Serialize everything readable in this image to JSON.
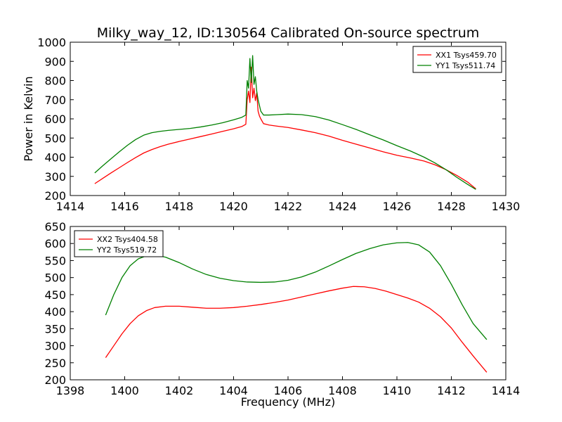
{
  "title": "Milky_way_12, ID:130564 Calibrated On-source spectrum",
  "chart_data": [
    {
      "type": "line",
      "xlabel": "",
      "ylabel": "Power in Kelvin",
      "xlim": [
        1414,
        1430
      ],
      "ylim": [
        200,
        1000
      ],
      "xticks": [
        1414,
        1416,
        1418,
        1420,
        1422,
        1424,
        1426,
        1428,
        1430
      ],
      "yticks": [
        200,
        300,
        400,
        500,
        600,
        700,
        800,
        900,
        1000
      ],
      "legend_position": "top-right",
      "grid": false,
      "series": [
        {
          "name": "XX1 Tsys459.70",
          "color": "#ff0000",
          "x": [
            1414.9,
            1415.2,
            1415.5,
            1415.8,
            1416.1,
            1416.4,
            1416.7,
            1417.0,
            1417.3,
            1417.6,
            1418.0,
            1418.4,
            1418.8,
            1419.2,
            1419.6,
            1420.0,
            1420.3,
            1420.45,
            1420.5,
            1420.55,
            1420.6,
            1420.65,
            1420.7,
            1420.75,
            1420.8,
            1420.85,
            1420.9,
            1420.95,
            1421.0,
            1421.1,
            1421.3,
            1421.6,
            1422.0,
            1422.5,
            1423.0,
            1423.5,
            1424.0,
            1424.5,
            1425.0,
            1425.5,
            1426.0,
            1426.5,
            1427.0,
            1427.4,
            1427.8,
            1428.2,
            1428.6,
            1428.9
          ],
          "y": [
            262,
            290,
            318,
            345,
            372,
            398,
            422,
            440,
            455,
            468,
            482,
            495,
            508,
            521,
            535,
            548,
            560,
            572,
            700,
            745,
            685,
            870,
            710,
            760,
            695,
            735,
            640,
            615,
            600,
            575,
            568,
            562,
            555,
            542,
            528,
            510,
            488,
            468,
            448,
            428,
            410,
            396,
            380,
            360,
            335,
            305,
            270,
            235
          ]
        },
        {
          "name": "YY1 Tsys511.74",
          "color": "#008000",
          "x": [
            1414.9,
            1415.2,
            1415.5,
            1415.8,
            1416.1,
            1416.4,
            1416.7,
            1417.0,
            1417.3,
            1417.6,
            1418.0,
            1418.4,
            1418.8,
            1419.2,
            1419.6,
            1420.0,
            1420.3,
            1420.45,
            1420.5,
            1420.55,
            1420.6,
            1420.65,
            1420.7,
            1420.75,
            1420.8,
            1420.85,
            1420.9,
            1420.95,
            1421.0,
            1421.1,
            1421.3,
            1421.6,
            1422.0,
            1422.5,
            1423.0,
            1423.5,
            1424.0,
            1424.5,
            1425.0,
            1425.5,
            1426.0,
            1426.5,
            1427.0,
            1427.4,
            1427.8,
            1428.2,
            1428.6,
            1428.9
          ],
          "y": [
            318,
            356,
            392,
            428,
            462,
            492,
            515,
            528,
            535,
            540,
            545,
            550,
            558,
            568,
            580,
            595,
            608,
            620,
            800,
            760,
            915,
            790,
            930,
            780,
            820,
            745,
            700,
            670,
            640,
            620,
            620,
            622,
            625,
            622,
            612,
            594,
            570,
            545,
            517,
            490,
            460,
            432,
            400,
            370,
            335,
            295,
            258,
            232
          ]
        }
      ]
    },
    {
      "type": "line",
      "xlabel": "Frequency (MHz)",
      "ylabel": "",
      "xlim": [
        1398,
        1414
      ],
      "ylim": [
        200,
        650
      ],
      "xticks": [
        1398,
        1400,
        1402,
        1404,
        1406,
        1408,
        1410,
        1412,
        1414
      ],
      "yticks": [
        200,
        250,
        300,
        350,
        400,
        450,
        500,
        550,
        600,
        650
      ],
      "legend_position": "top-left",
      "grid": false,
      "series": [
        {
          "name": "XX2 Tsys404.58",
          "color": "#ff0000",
          "x": [
            1399.3,
            1399.6,
            1399.9,
            1400.2,
            1400.5,
            1400.8,
            1401.1,
            1401.5,
            1402.0,
            1402.5,
            1403.0,
            1403.5,
            1404.0,
            1404.5,
            1405.0,
            1405.5,
            1406.0,
            1406.5,
            1407.0,
            1407.5,
            1408.0,
            1408.4,
            1408.8,
            1409.2,
            1409.6,
            1410.0,
            1410.4,
            1410.8,
            1411.2,
            1411.6,
            1412.0,
            1412.4,
            1412.8,
            1413.3
          ],
          "y": [
            265,
            300,
            335,
            365,
            388,
            403,
            412,
            416,
            416,
            413,
            410,
            410,
            412,
            416,
            421,
            427,
            434,
            443,
            452,
            461,
            469,
            474,
            473,
            468,
            460,
            450,
            440,
            428,
            410,
            385,
            352,
            310,
            270,
            222
          ]
        },
        {
          "name": "YY2 Tsys519.72",
          "color": "#008000",
          "x": [
            1399.3,
            1399.6,
            1399.9,
            1400.2,
            1400.5,
            1400.8,
            1401.1,
            1401.5,
            1402.0,
            1402.5,
            1403.0,
            1403.5,
            1404.0,
            1404.5,
            1405.0,
            1405.5,
            1406.0,
            1406.5,
            1407.0,
            1407.5,
            1408.0,
            1408.5,
            1409.0,
            1409.5,
            1410.0,
            1410.4,
            1410.8,
            1411.2,
            1411.6,
            1412.0,
            1412.4,
            1412.8,
            1413.3
          ],
          "y": [
            390,
            450,
            500,
            535,
            555,
            564,
            566,
            560,
            544,
            525,
            509,
            498,
            491,
            487,
            486,
            487,
            492,
            502,
            516,
            534,
            553,
            571,
            585,
            596,
            602,
            603,
            596,
            575,
            535,
            480,
            420,
            365,
            318
          ]
        }
      ]
    }
  ]
}
